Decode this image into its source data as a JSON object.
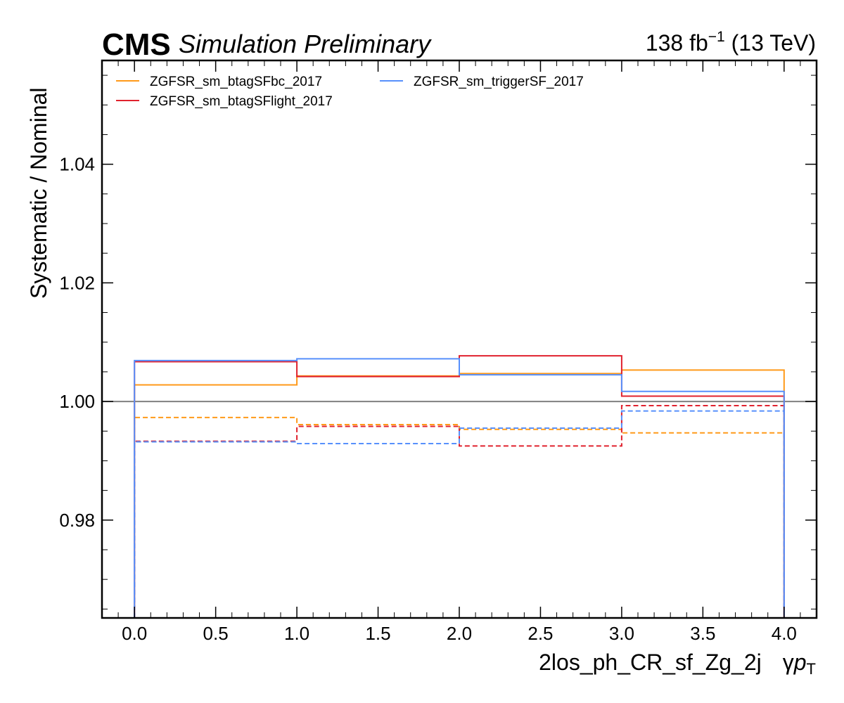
{
  "header": {
    "experiment": "CMS",
    "status": "Simulation Preliminary",
    "lumi_value": "138 fb",
    "lumi_exponent": "−1",
    "energy": " (13 TeV)"
  },
  "chart_data": {
    "type": "step",
    "xlabel": "2los_ph_CR_sf_Zg_2j",
    "xlabel_suffix_gamma": "γ",
    "xlabel_suffix_p": "p",
    "xlabel_suffix_sub": "T",
    "ylabel": "Systematic / Nominal",
    "xlim": [
      -0.2,
      4.2
    ],
    "ylim": [
      0.9635,
      1.0575
    ],
    "xticks": [
      0.0,
      0.5,
      1.0,
      1.5,
      2.0,
      2.5,
      3.0,
      3.5,
      4.0
    ],
    "xtick_labels": [
      "0.0",
      "0.5",
      "1.0",
      "1.5",
      "2.0",
      "2.5",
      "3.0",
      "3.5",
      "4.0"
    ],
    "yticks": [
      0.98,
      1.0,
      1.02,
      1.04
    ],
    "ytick_labels": [
      "0.98",
      "1.00",
      "1.02",
      "1.04"
    ],
    "bin_edges": [
      0,
      1,
      2,
      3,
      4
    ],
    "reference_line": 1.0,
    "legend_position": "top-left",
    "grid": false,
    "series": [
      {
        "name": "ZGFSR_sm_btagSFbc_2017",
        "color": "#ff9a1a",
        "up": [
          1.0028,
          1.0043,
          1.0047,
          1.0053
        ],
        "down": [
          0.9973,
          0.9961,
          0.9953,
          0.9947
        ]
      },
      {
        "name": "ZGFSR_sm_btagSFlight_2017",
        "color": "#e0222e",
        "up": [
          1.0067,
          1.0042,
          1.0077,
          1.0009
        ],
        "down": [
          0.9933,
          0.9958,
          0.9925,
          0.9993
        ]
      },
      {
        "name": "ZGFSR_sm_triggerSF_2017",
        "color": "#5790fc",
        "up": [
          1.0069,
          1.0072,
          1.0045,
          1.0017
        ],
        "down": [
          0.9932,
          0.9929,
          0.9955,
          0.9984
        ]
      }
    ]
  }
}
